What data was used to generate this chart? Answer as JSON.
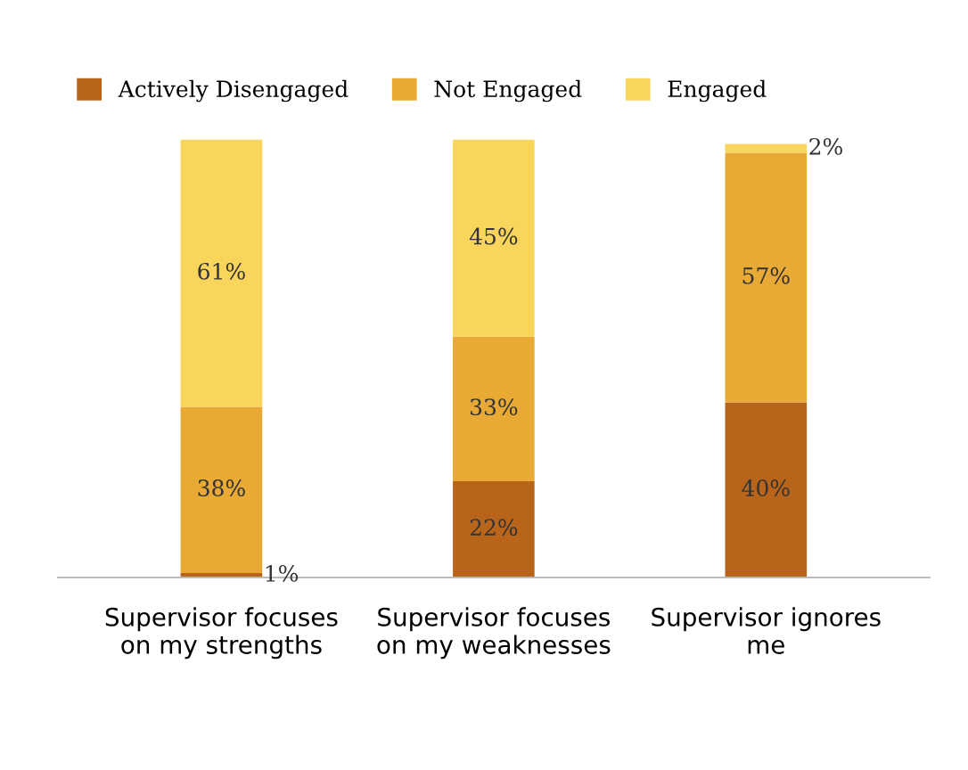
{
  "chart_data": {
    "type": "bar",
    "stacked": true,
    "categories": [
      "Supervisor focuses\non my strengths",
      "Supervisor focuses\non my weaknesses",
      "Supervisor ignores\nme"
    ],
    "series": [
      {
        "name": "Actively Disengaged",
        "color": "#b8651b",
        "values": [
          1,
          22,
          40
        ],
        "value_labels": [
          "1%",
          "22%",
          "40%"
        ]
      },
      {
        "name": "Not Engaged",
        "color": "#e8aa35",
        "values": [
          38,
          33,
          57
        ],
        "value_labels": [
          "38%",
          "33%",
          "57%"
        ]
      },
      {
        "name": "Engaged",
        "color": "#f9d55c",
        "values": [
          61,
          45,
          2
        ],
        "value_labels": [
          "61%",
          "45%",
          "2%"
        ]
      }
    ],
    "legend": "top left",
    "grid": false
  }
}
